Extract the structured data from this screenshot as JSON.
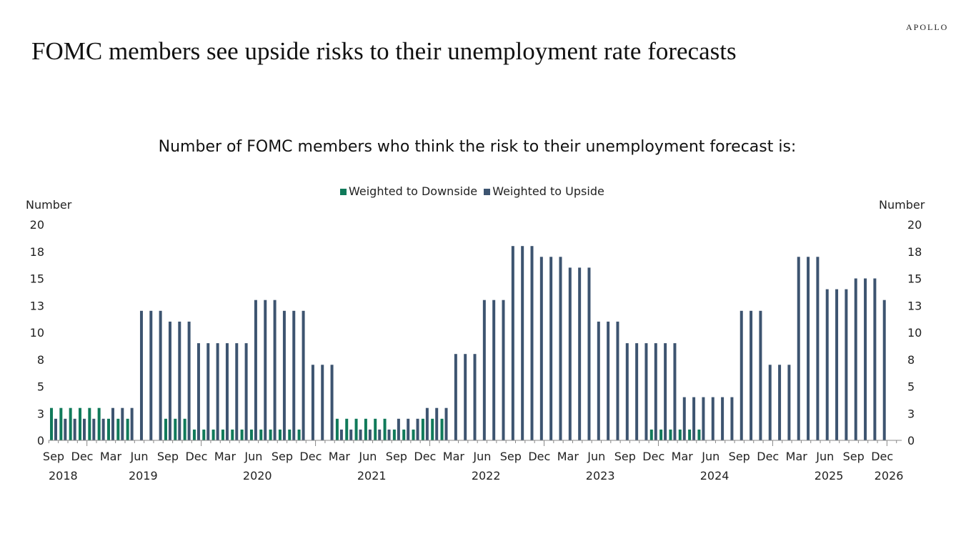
{
  "header": {
    "title": "FOMC members see upside risks to their unemployment rate forecasts",
    "logo": "APOLLO"
  },
  "chart_data": {
    "type": "bar",
    "title": "Number of FOMC members who think the risk to their unemployment forecast is:",
    "ylabel_left": "Number",
    "ylabel_right": "Number",
    "ylim": [
      0,
      20
    ],
    "yticks": [
      0,
      2.5,
      5,
      7.5,
      10,
      12.5,
      15,
      17.5,
      20
    ],
    "ytick_labels": [
      "0",
      "3",
      "5",
      "8",
      "10",
      "13",
      "15",
      "18",
      "20"
    ],
    "legend_position": "top-center",
    "grid": false,
    "categories": [
      "2018-09",
      "2018-10",
      "2018-11",
      "2018-12",
      "2019-01",
      "2019-02",
      "2019-03",
      "2019-04",
      "2019-05",
      "2019-06",
      "2019-07",
      "2019-08",
      "2019-09",
      "2019-10",
      "2019-11",
      "2019-12",
      "2020-01",
      "2020-02",
      "2020-03",
      "2020-04",
      "2020-05",
      "2020-06",
      "2020-07",
      "2020-08",
      "2020-09",
      "2020-10",
      "2020-11",
      "2020-12",
      "2021-01",
      "2021-02",
      "2021-03",
      "2021-04",
      "2021-05",
      "2021-06",
      "2021-07",
      "2021-08",
      "2021-09",
      "2021-10",
      "2021-11",
      "2021-12",
      "2022-01",
      "2022-02",
      "2022-03",
      "2022-04",
      "2022-05",
      "2022-06",
      "2022-07",
      "2022-08",
      "2022-09",
      "2022-10",
      "2022-11",
      "2022-12",
      "2023-01",
      "2023-02",
      "2023-03",
      "2023-04",
      "2023-05",
      "2023-06",
      "2023-07",
      "2023-08",
      "2023-09",
      "2023-10",
      "2023-11",
      "2023-12",
      "2024-01",
      "2024-02",
      "2024-03",
      "2024-04",
      "2024-05",
      "2024-06",
      "2024-07",
      "2024-08",
      "2024-09",
      "2024-10",
      "2024-11",
      "2024-12",
      "2025-01",
      "2025-02",
      "2025-03",
      "2025-04",
      "2025-05",
      "2025-06",
      "2025-07",
      "2025-08",
      "2025-09",
      "2025-10",
      "2025-11",
      "2025-12"
    ],
    "month_tick_labels": [
      "Sep",
      "Dec",
      "Mar",
      "Jun"
    ],
    "year_labels": [
      "2018",
      "2019",
      "2020",
      "2021",
      "2022",
      "2023",
      "2024",
      "2025",
      "2026"
    ],
    "series": [
      {
        "name": "Weighted to Downside",
        "color": "#107a5a",
        "values": [
          3,
          3,
          3,
          3,
          3,
          3,
          2,
          2,
          2,
          0,
          0,
          0,
          2,
          2,
          2,
          1,
          1,
          1,
          1,
          1,
          1,
          1,
          1,
          1,
          1,
          1,
          1,
          0,
          0,
          0,
          2,
          2,
          2,
          2,
          2,
          2,
          1,
          1,
          1,
          2,
          2,
          2,
          0,
          0,
          0,
          0,
          0,
          0,
          0,
          0,
          0,
          0,
          0,
          0,
          0,
          0,
          0,
          0,
          0,
          0,
          0,
          0,
          0,
          1,
          1,
          1,
          1,
          1,
          1,
          0,
          0,
          0,
          0,
          0,
          0,
          0,
          0,
          0,
          0,
          0,
          0,
          0,
          0,
          0,
          0,
          0,
          0,
          0
        ]
      },
      {
        "name": "Weighted to Upside",
        "color": "#3d5470",
        "values": [
          2,
          2,
          2,
          2,
          2,
          2,
          3,
          3,
          3,
          12,
          12,
          12,
          11,
          11,
          11,
          9,
          9,
          9,
          9,
          9,
          9,
          13,
          13,
          13,
          12,
          12,
          12,
          7,
          7,
          7,
          1,
          1,
          1,
          1,
          1,
          1,
          2,
          2,
          2,
          3,
          3,
          3,
          8,
          8,
          8,
          13,
          13,
          13,
          18,
          18,
          18,
          17,
          17,
          17,
          16,
          16,
          16,
          11,
          11,
          11,
          9,
          9,
          9,
          9,
          9,
          9,
          4,
          4,
          4,
          4,
          4,
          4,
          12,
          12,
          12,
          7,
          7,
          7,
          17,
          17,
          17,
          14,
          14,
          14,
          15,
          15,
          15,
          13
        ]
      }
    ]
  }
}
